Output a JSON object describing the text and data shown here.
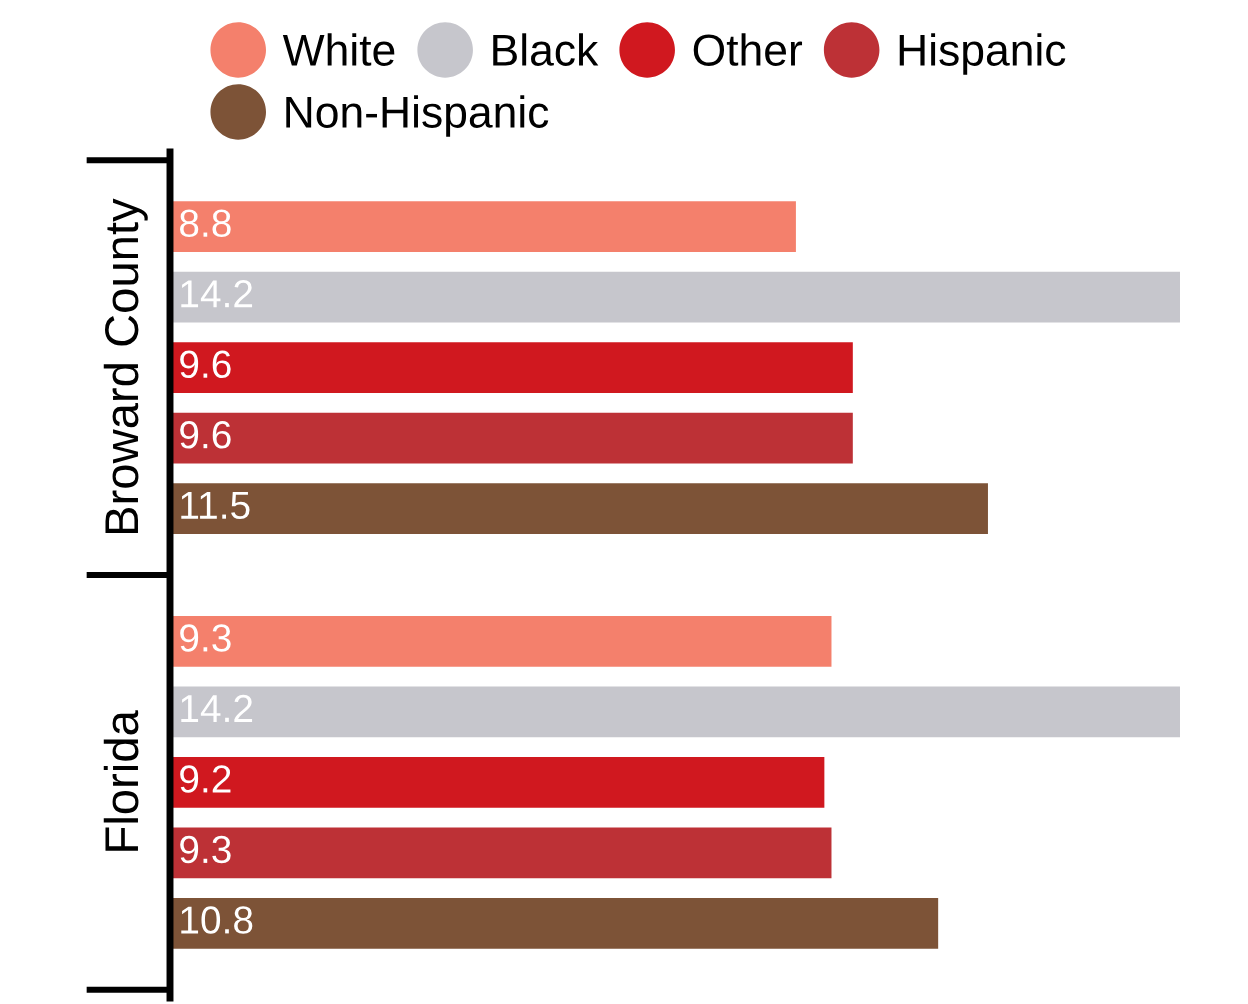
{
  "chart_data": {
    "type": "bar",
    "orientation": "horizontal",
    "categories": [
      "Broward County",
      "Florida"
    ],
    "series": [
      {
        "name": "White",
        "color": "#f4806c",
        "values": [
          8.8,
          9.3
        ]
      },
      {
        "name": "Black",
        "color": "#c6c6cc",
        "values": [
          14.2,
          14.2
        ]
      },
      {
        "name": "Other",
        "color": "#d0181f",
        "values": [
          9.6,
          9.2
        ]
      },
      {
        "name": "Hispanic",
        "color": "#bd3136",
        "values": [
          9.6,
          9.3
        ]
      },
      {
        "name": "Non-Hispanic",
        "color": "#7d5337",
        "values": [
          11.5,
          10.8
        ]
      }
    ],
    "data_labels": true,
    "legend": "top"
  }
}
